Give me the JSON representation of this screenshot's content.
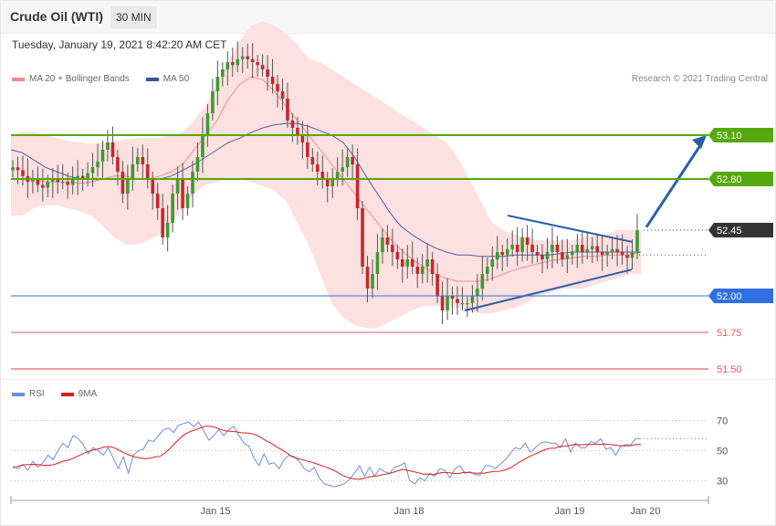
{
  "header": {
    "title": "Crude Oil (WTI)",
    "timeframe": "30 MIN"
  },
  "timestamp": "Tuesday, January 19, 2021 8:42:20 AM CET",
  "legend": {
    "ma20_label": "MA 20 + Bollinger Bands",
    "ma50_label": "MA 50",
    "rsi_label": "RSI",
    "rsi_ma_label": "9MA"
  },
  "copyright": "Research © 2021 Trading Central",
  "colors": {
    "bollinger_fill": "#fde0e0",
    "ma20": "#f28b8b",
    "ma50": "#4a5fa8",
    "bull_candle": "#3c9b2f",
    "bear_candle": "#c9262c",
    "resistance": "#56a80f",
    "support_blue": "#2f6fe0",
    "support_red_1": "#e05a5a",
    "support_red_2": "#f2a0a0",
    "current_price": "#333333",
    "arrow": "#2b5fa8",
    "rsi": "#6c8de0",
    "rsi_ma": "#e21b1b"
  },
  "chart_data": [
    {
      "type": "candlestick",
      "instrument": "Crude Oil (WTI)",
      "interval": "30 MIN",
      "ylim": [
        51.4,
        53.65
      ],
      "x_ticks": [
        "Jan 15",
        "Jan 18",
        "Jan 19",
        "Jan 20"
      ],
      "levels": [
        {
          "label": "53.10",
          "value": 53.1,
          "kind": "resistance"
        },
        {
          "label": "52.80",
          "value": 52.8,
          "kind": "resistance"
        },
        {
          "label": "52.45",
          "value": 52.45,
          "kind": "current"
        },
        {
          "label": "52.00",
          "value": 52.0,
          "kind": "support"
        },
        {
          "label": "51.75",
          "value": 51.75,
          "kind": "support"
        },
        {
          "label": "51.50",
          "value": 51.5,
          "kind": "support"
        }
      ],
      "close_series": [
        52.88,
        52.86,
        52.82,
        52.78,
        52.8,
        52.76,
        52.74,
        52.78,
        52.8,
        52.78,
        52.78,
        52.76,
        52.8,
        52.82,
        52.8,
        52.84,
        52.88,
        52.92,
        53.0,
        53.05,
        52.95,
        52.85,
        52.7,
        52.8,
        52.9,
        52.95,
        52.9,
        52.8,
        52.7,
        52.6,
        52.4,
        52.5,
        52.7,
        52.8,
        52.6,
        52.7,
        52.85,
        52.95,
        53.1,
        53.25,
        53.4,
        53.5,
        53.55,
        53.6,
        53.58,
        53.62,
        53.64,
        53.62,
        53.6,
        53.58,
        53.55,
        53.5,
        53.45,
        53.4,
        53.35,
        53.2,
        53.15,
        53.1,
        53.05,
        52.95,
        52.9,
        52.85,
        52.8,
        52.75,
        52.8,
        52.85,
        52.88,
        52.95,
        52.9,
        52.6,
        52.2,
        52.05,
        52.15,
        52.3,
        52.4,
        52.35,
        52.3,
        52.25,
        52.2,
        52.25,
        52.2,
        52.15,
        52.2,
        52.25,
        52.15,
        52.0,
        51.9,
        52.0,
        51.98,
        51.95,
        51.95,
        51.95,
        52.0,
        52.05,
        52.15,
        52.2,
        52.25,
        52.3,
        52.28,
        52.32,
        52.35,
        52.3,
        52.4,
        52.35,
        52.3,
        52.28,
        52.25,
        52.3,
        52.35,
        52.3,
        52.25,
        52.28,
        52.3,
        52.35,
        52.3,
        52.32,
        52.34,
        52.3,
        52.28,
        52.3,
        52.32,
        52.3,
        52.28,
        52.26,
        52.3,
        52.45
      ],
      "bollinger_upper": [
        53.1,
        53.12,
        53.12,
        53.1,
        53.08,
        53.06,
        53.05,
        53.04,
        53.05,
        53.06,
        53.07,
        53.08,
        53.08,
        53.08,
        53.1,
        53.12,
        53.2,
        53.3,
        53.45,
        53.6,
        53.75,
        53.85,
        53.88,
        53.85,
        53.8,
        53.72,
        53.62,
        53.6,
        53.55,
        53.5,
        53.45,
        53.4,
        53.35,
        53.3,
        53.25,
        53.2,
        53.15,
        53.1,
        53.05,
        52.95,
        52.8,
        52.65,
        52.5,
        52.45,
        52.42,
        52.4,
        52.38,
        52.38,
        52.38,
        52.38,
        52.4,
        52.42,
        52.42,
        52.45,
        52.45,
        52.45
      ],
      "bollinger_lower": [
        52.55,
        52.55,
        52.6,
        52.62,
        52.62,
        52.6,
        52.58,
        52.55,
        52.48,
        52.4,
        52.35,
        52.35,
        52.38,
        52.42,
        52.5,
        52.6,
        52.7,
        52.76,
        52.78,
        52.8,
        52.8,
        52.78,
        52.75,
        52.72,
        52.65,
        52.5,
        52.35,
        52.15,
        51.95,
        51.85,
        51.8,
        51.78,
        51.78,
        51.82,
        51.86,
        51.9,
        51.93,
        51.93,
        51.93,
        51.92,
        51.9,
        51.88,
        51.88,
        51.9,
        51.92,
        51.95,
        52.0,
        52.02,
        52.05,
        52.05,
        52.05,
        52.08,
        52.1,
        52.12,
        52.15,
        52.15
      ],
      "ma20": [
        52.8,
        52.8,
        52.8,
        52.78,
        52.78,
        52.78,
        52.77,
        52.78,
        52.8,
        52.82,
        52.82,
        52.8,
        52.8,
        52.82,
        52.85,
        52.9,
        53.0,
        53.1,
        53.2,
        53.35,
        53.45,
        53.5,
        53.48,
        53.4,
        53.3,
        53.2,
        53.1,
        53.0,
        52.9,
        52.8,
        52.7,
        52.6,
        52.5,
        52.4,
        52.32,
        52.25,
        52.2,
        52.15,
        52.12,
        52.1,
        52.1,
        52.1,
        52.12,
        52.15,
        52.18,
        52.2,
        52.22,
        52.24,
        52.25,
        52.26,
        52.27,
        52.27,
        52.28,
        52.28,
        52.28,
        52.3
      ],
      "ma50": [
        53.0,
        52.98,
        52.93,
        52.88,
        52.85,
        52.82,
        52.8,
        52.8,
        52.8,
        52.8,
        52.8,
        52.8,
        52.8,
        52.8,
        52.82,
        52.86,
        52.9,
        52.95,
        53.0,
        53.05,
        53.08,
        53.12,
        53.15,
        53.17,
        53.18,
        53.18,
        53.16,
        53.13,
        53.1,
        53.05,
        52.95,
        52.82,
        52.7,
        52.58,
        52.48,
        52.42,
        52.37,
        52.33,
        52.3,
        52.28,
        52.28,
        52.27,
        52.27,
        52.27,
        52.28,
        52.28,
        52.28,
        52.28,
        52.29,
        52.3,
        52.3,
        52.3,
        52.3,
        52.3,
        52.3,
        52.3
      ]
    },
    {
      "type": "line",
      "name": "RSI",
      "ylim": [
        20,
        80
      ],
      "y_ticks": [
        70,
        50,
        30
      ],
      "series": [
        {
          "name": "RSI",
          "values": [
            40,
            38,
            41,
            37,
            43,
            39,
            42,
            47,
            44,
            50,
            55,
            52,
            60,
            58,
            54,
            48,
            52,
            50,
            47,
            52,
            45,
            38,
            46,
            35,
            47,
            50,
            51,
            57,
            56,
            60,
            64,
            65,
            62,
            67,
            68,
            69,
            66,
            69,
            63,
            57,
            60,
            64,
            60,
            64,
            66,
            60,
            55,
            53,
            45,
            40,
            48,
            41,
            42,
            38,
            44,
            47,
            46,
            43,
            38,
            36,
            39,
            32,
            28,
            27,
            26,
            27,
            28,
            31,
            35,
            40,
            33,
            39,
            33,
            38,
            36,
            35,
            39,
            40,
            42,
            30,
            28,
            32,
            30,
            35,
            33,
            38,
            37,
            32,
            38,
            40,
            35,
            36,
            34,
            34,
            40,
            40,
            38,
            41,
            44,
            48,
            52,
            51,
            55,
            49,
            52,
            55,
            56,
            55,
            55,
            52,
            58,
            49,
            55,
            52,
            52,
            56,
            55,
            58,
            51,
            52,
            47,
            53,
            54,
            54,
            58,
            58
          ]
        },
        {
          "name": "9MA",
          "values": [
            38.6,
            39.6,
            40.4,
            40.7,
            40.9,
            40.8,
            40.3,
            40.3,
            40.6,
            41.8,
            43.1,
            43.7,
            45.1,
            46.6,
            48.3,
            49.5,
            50.6,
            51.2,
            52.4,
            52.7,
            51.9,
            50.3,
            48.4,
            47.2,
            45.8,
            45.3,
            44.7,
            45.0,
            45.8,
            46.2,
            48.3,
            51.3,
            54.9,
            58.2,
            61.1,
            62.6,
            63.9,
            65.1,
            66.2,
            66.2,
            65.4,
            64.1,
            63.1,
            62.9,
            62.6,
            61.9,
            61.8,
            61.4,
            60.4,
            58.7,
            56.6,
            55.0,
            52.6,
            50.8,
            48.7,
            46.2,
            45.1,
            44.1,
            43.2,
            42.3,
            41.2,
            40.1,
            38.9,
            37.6,
            35.8,
            33.8,
            32.3,
            31.5,
            31.0,
            31.3,
            32.3,
            32.9,
            33.3,
            34.1,
            34.6,
            35.5,
            36.6,
            37.7,
            36.8,
            36.1,
            35.4,
            34.4,
            34.5,
            34.2,
            34.9,
            35.6,
            35.4,
            34.9,
            34.8,
            35.6,
            35.5,
            35.1,
            35.1,
            35.0,
            35.7,
            36.2,
            36.3,
            37.0,
            38.2,
            40.2,
            42.4,
            44.2,
            46.1,
            47.5,
            49.1,
            50.6,
            51.6,
            51.6,
            52.7,
            53.0,
            53.6,
            54.1,
            53.9,
            54.1,
            54.1,
            54.3,
            54.2,
            54.4,
            54.0,
            53.7,
            53.2,
            53.2,
            53.3,
            54.2,
            54.0
          ]
        }
      ]
    }
  ]
}
